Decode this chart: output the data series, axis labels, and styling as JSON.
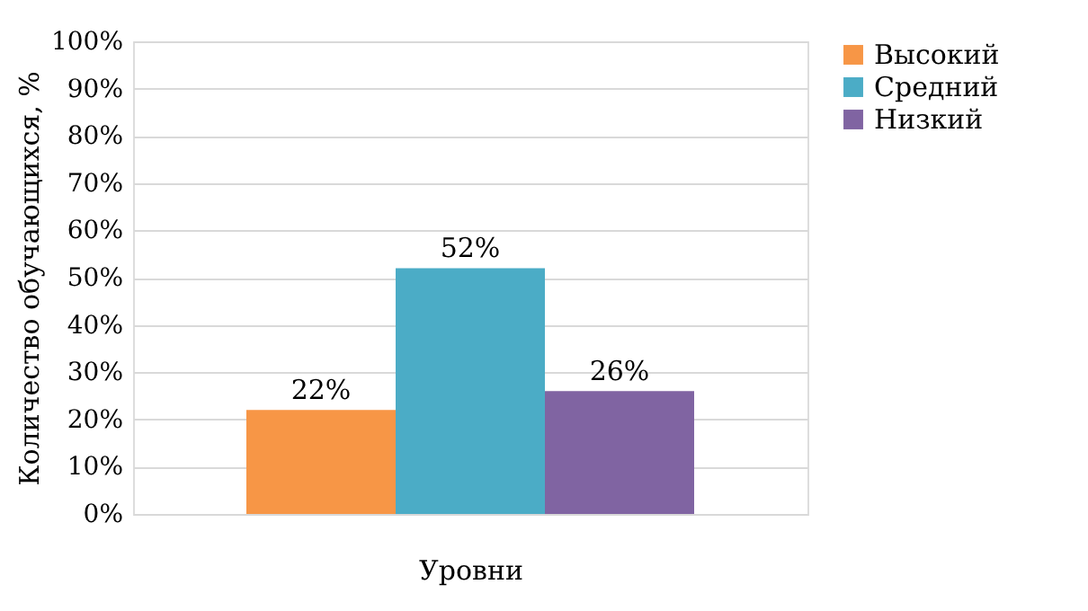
{
  "chart_data": {
    "type": "bar",
    "categories": [
      null
    ],
    "xlabel": "Уровни",
    "ylabel": "Количество обучающихся, %",
    "series": [
      {
        "name": "Высокий",
        "color": "#f79646",
        "values": [
          22
        ],
        "value_labels": [
          "22%"
        ]
      },
      {
        "name": "Средний",
        "color": "#4bacc6",
        "values": [
          52
        ],
        "value_labels": [
          "52%"
        ]
      },
      {
        "name": "Низкий",
        "color": "#8064a2",
        "values": [
          26
        ],
        "value_labels": [
          "26%"
        ]
      }
    ],
    "ylim": [
      0,
      100
    ],
    "yticks": [
      {
        "value": 0,
        "label": "0%"
      },
      {
        "value": 10,
        "label": "10%"
      },
      {
        "value": 20,
        "label": "20%"
      },
      {
        "value": 30,
        "label": "30%"
      },
      {
        "value": 40,
        "label": "40%"
      },
      {
        "value": 50,
        "label": "50%"
      },
      {
        "value": 60,
        "label": "60%"
      },
      {
        "value": 70,
        "label": "70%"
      },
      {
        "value": 80,
        "label": "80%"
      },
      {
        "value": 90,
        "label": "90%"
      },
      {
        "value": 100,
        "label": "100%"
      }
    ],
    "grid": "y",
    "legend": "right"
  }
}
